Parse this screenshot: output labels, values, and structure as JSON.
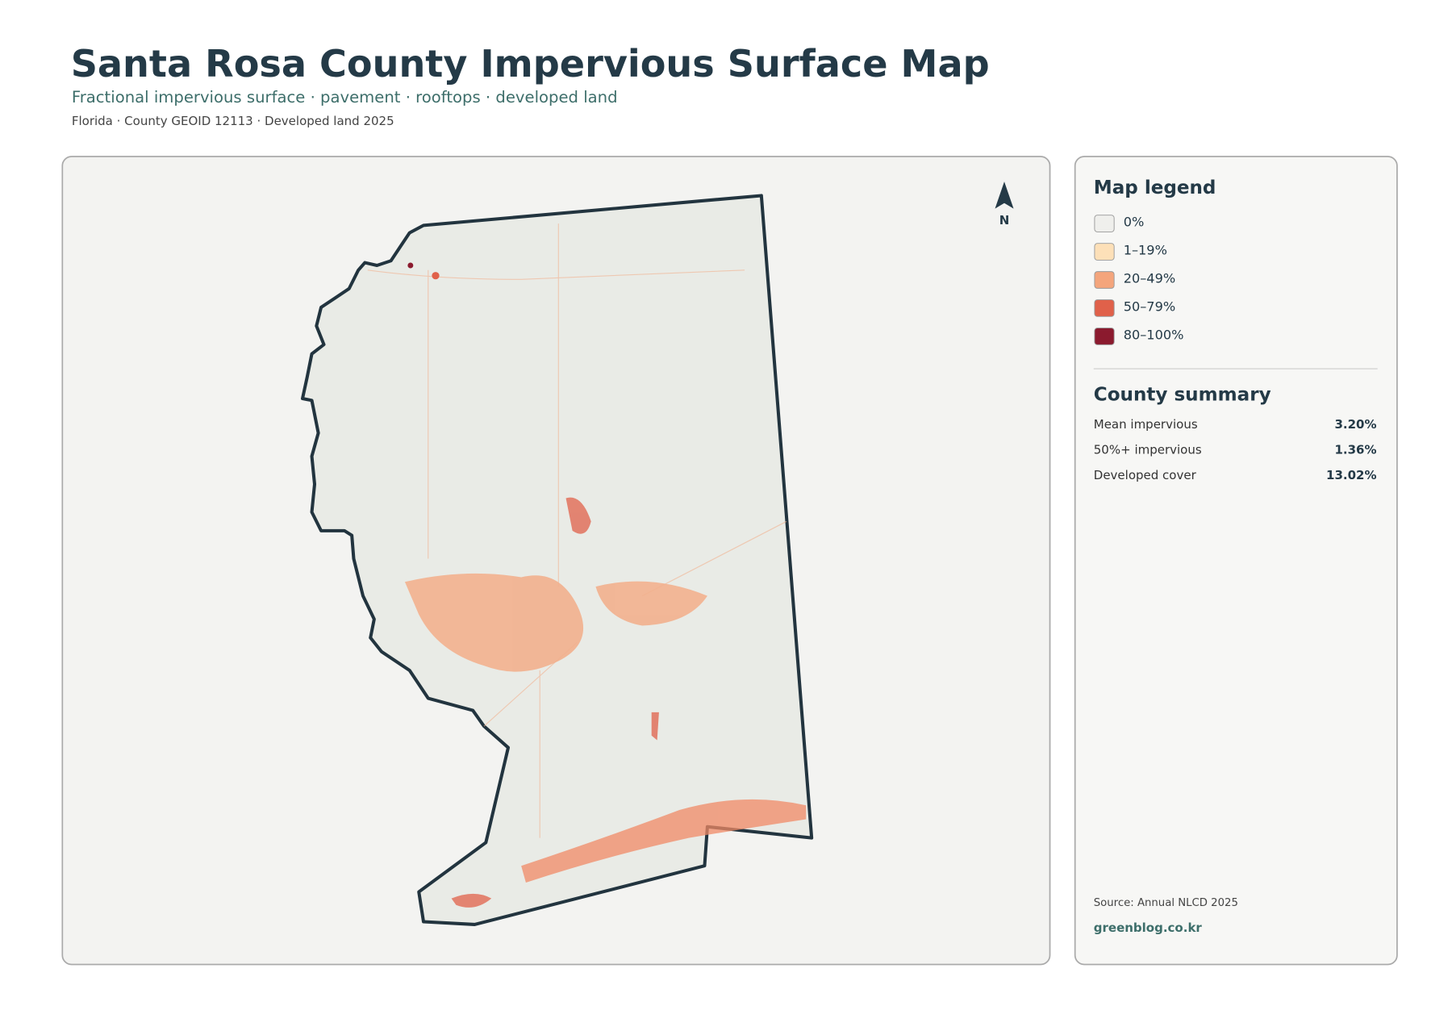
{
  "header": {
    "title": "Santa Rosa County Impervious Surface Map",
    "subtitle": "Fractional impervious surface · pavement · rooftops · developed land",
    "meta": "Florida · County GEOID 12113 · Developed land 2025"
  },
  "map": {
    "north_label": "N"
  },
  "legend": {
    "title": "Map legend",
    "items": [
      {
        "label": "0%",
        "color": "#efefec"
      },
      {
        "label": "1–19%",
        "color": "#fde0b8"
      },
      {
        "label": "20–49%",
        "color": "#f4a57c"
      },
      {
        "label": "50–79%",
        "color": "#e0614a"
      },
      {
        "label": "80–100%",
        "color": "#8b1a2e"
      }
    ]
  },
  "summary": {
    "title": "County summary",
    "rows": [
      {
        "label": "Mean impervious",
        "value": "3.20%"
      },
      {
        "label": "50%+ impervious",
        "value": "1.36%"
      },
      {
        "label": "Developed cover",
        "value": "13.02%"
      }
    ]
  },
  "footer": {
    "source": "Source: Annual NLCD 2025",
    "credit": "greenblog.co.kr"
  }
}
